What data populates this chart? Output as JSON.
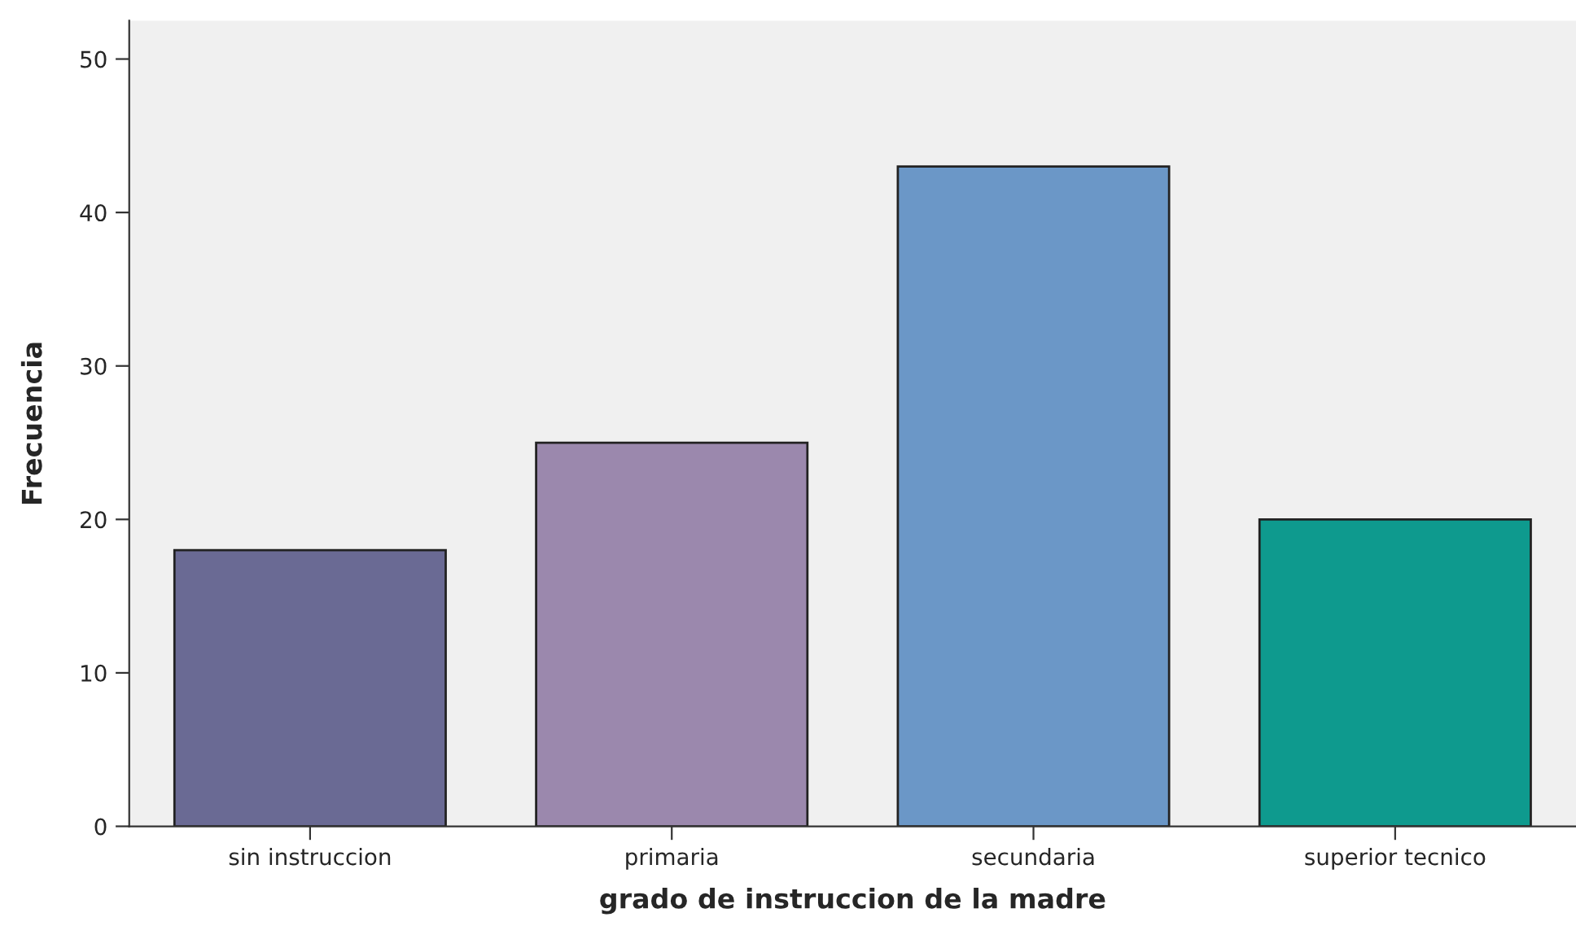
{
  "chart_data": {
    "type": "bar",
    "xlabel": "grado de instruccion de la madre",
    "ylabel": "Frecuencia",
    "categories": [
      "sin instruccion",
      "primaria",
      "secundaria",
      "superior tecnico"
    ],
    "values": [
      18,
      25,
      43,
      20
    ],
    "colors": [
      "#6a6a94",
      "#9b88ad",
      "#6b97c7",
      "#0e9a8e"
    ],
    "ylim": [
      0,
      52.5
    ],
    "yticks": [
      0,
      10,
      20,
      30,
      40,
      50
    ],
    "grid": false,
    "legend": false
  }
}
